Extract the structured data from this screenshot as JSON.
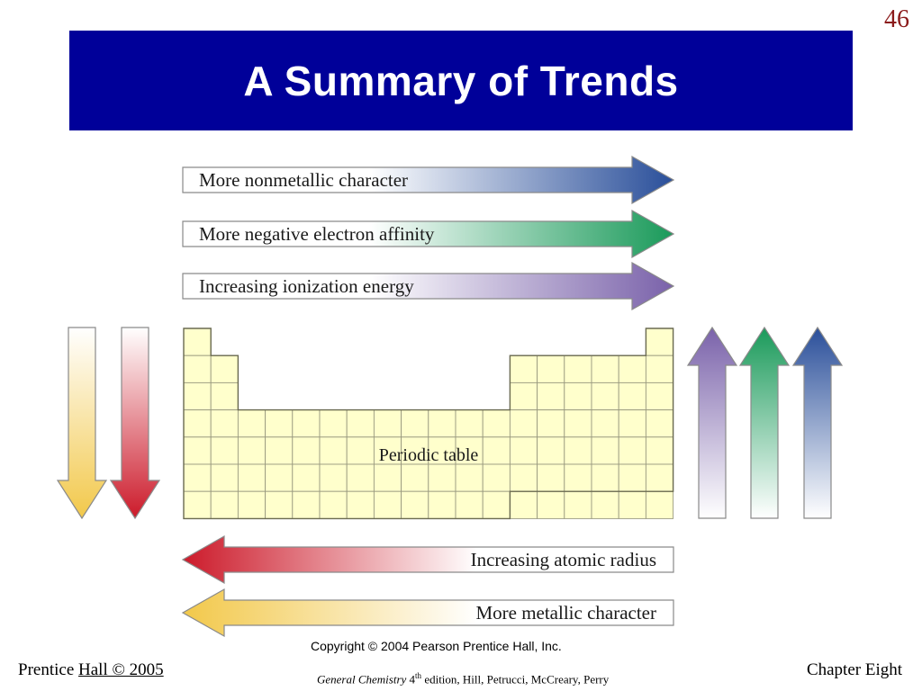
{
  "slide": {
    "number": "46",
    "title": "A Summary of Trends"
  },
  "diagram": {
    "periodic_table_label": "Periodic table",
    "horizontal_arrows": [
      {
        "id": "nonmetallic",
        "label": "More nonmetallic character",
        "direction": "right",
        "color": "#2a4f9a"
      },
      {
        "id": "electron-affinity",
        "label": "More negative electron affinity",
        "direction": "right",
        "color": "#1a9a5a"
      },
      {
        "id": "ionization",
        "label": "Increasing ionization energy",
        "direction": "right",
        "color": "#7a62aa"
      },
      {
        "id": "atomic-radius",
        "label": "Increasing atomic radius",
        "direction": "left",
        "color": "#cc1a2a"
      },
      {
        "id": "metallic",
        "label": "More metallic character",
        "direction": "left",
        "color": "#f2c84a"
      }
    ],
    "vertical_arrows": [
      {
        "id": "down-yellow",
        "direction": "down",
        "color": "#f2c84a"
      },
      {
        "id": "down-red",
        "direction": "down",
        "color": "#cc1a2a"
      },
      {
        "id": "up-purple",
        "direction": "up",
        "color": "#7a62aa"
      },
      {
        "id": "up-green",
        "direction": "up",
        "color": "#1a9a5a"
      },
      {
        "id": "up-blue",
        "direction": "up",
        "color": "#2a4f9a"
      }
    ],
    "table_fill": "#ffffcc"
  },
  "footer": {
    "publisher_prefix": "Prentice ",
    "publisher_highlight": "Hall © 2005",
    "chapter": "Chapter Eight",
    "copyright": "Copyright © 2004 Pearson Prentice Hall, Inc.",
    "book_title": "General Chemistry",
    "edition_number": "4",
    "edition_suffix": "th",
    "edition_rest": " edition, Hill, Petrucci, McCreary, Perry"
  }
}
